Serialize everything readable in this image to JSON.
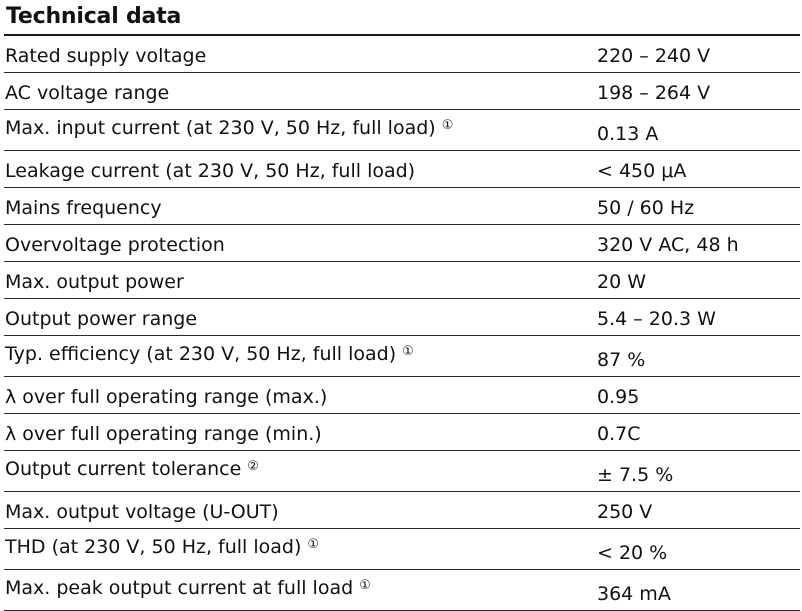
{
  "title": "Technical data",
  "rows": [
    {
      "parameter": "Rated supply voltage",
      "note": "",
      "value": "220 – 240 V"
    },
    {
      "parameter": "AC voltage range",
      "note": "",
      "value": "198 – 264 V"
    },
    {
      "parameter": "Max. input current (at 230 V, 50 Hz, full load)",
      "note": "①",
      "value": "0.13 A"
    },
    {
      "parameter": "Leakage current (at 230 V, 50 Hz, full load)",
      "note": "",
      "value": "< 450 μA"
    },
    {
      "parameter": "Mains frequency",
      "note": "",
      "value": "50 / 60 Hz"
    },
    {
      "parameter": "Overvoltage protection",
      "note": "",
      "value": "320 V AC, 48 h"
    },
    {
      "parameter": "Max. output power",
      "note": "",
      "value": "20 W"
    },
    {
      "parameter": "Output power range",
      "note": "",
      "value": "5.4 – 20.3 W"
    },
    {
      "parameter": "Typ. efficiency (at 230 V, 50 Hz, full load)",
      "note": "①",
      "value": "87 %"
    },
    {
      "parameter": "λ over full operating range (max.)",
      "note": "",
      "value": "0.95"
    },
    {
      "parameter": "λ over full operating range (min.)",
      "note": "",
      "value": "0.7C"
    },
    {
      "parameter": "Output current tolerance",
      "note": "②",
      "value": "± 7.5 %"
    },
    {
      "parameter": "Max. output voltage (U-OUT)",
      "note": "",
      "value": "250 V"
    },
    {
      "parameter": "THD (at 230 V, 50 Hz, full load)",
      "note": "①",
      "value": "< 20 %"
    },
    {
      "parameter": "Max. peak output current at full load",
      "note": "①",
      "value": "364 mA"
    }
  ]
}
